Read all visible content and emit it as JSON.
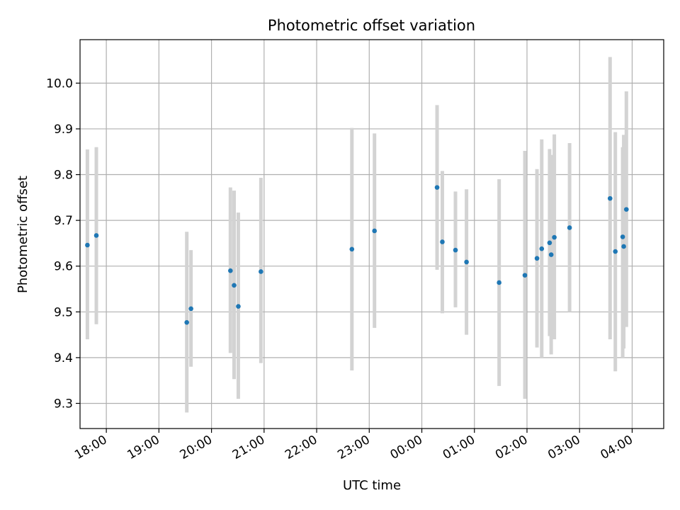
{
  "chart_data": {
    "type": "scatter",
    "title": "Photometric offset variation",
    "xlabel": "UTC time",
    "ylabel": "Photometric offset",
    "xlim": [
      17.5,
      28.6
    ],
    "ylim": [
      9.245,
      10.095
    ],
    "grid": true,
    "x_ticks": [
      {
        "value": 18,
        "label": "18:00"
      },
      {
        "value": 19,
        "label": "19:00"
      },
      {
        "value": 20,
        "label": "20:00"
      },
      {
        "value": 21,
        "label": "21:00"
      },
      {
        "value": 22,
        "label": "22:00"
      },
      {
        "value": 23,
        "label": "23:00"
      },
      {
        "value": 24,
        "label": "00:00"
      },
      {
        "value": 25,
        "label": "01:00"
      },
      {
        "value": 26,
        "label": "02:00"
      },
      {
        "value": 27,
        "label": "03:00"
      },
      {
        "value": 28,
        "label": "04:00"
      }
    ],
    "y_ticks": [
      {
        "value": 9.3,
        "label": "9.3"
      },
      {
        "value": 9.4,
        "label": "9.4"
      },
      {
        "value": 9.5,
        "label": "9.5"
      },
      {
        "value": 9.6,
        "label": "9.6"
      },
      {
        "value": 9.7,
        "label": "9.7"
      },
      {
        "value": 9.8,
        "label": "9.8"
      },
      {
        "value": 9.9,
        "label": "9.9"
      },
      {
        "value": 10.0,
        "label": "10.0"
      }
    ],
    "point_color": "#1f77b4",
    "errorbar_color": "#d3d3d3",
    "points": [
      {
        "x": 17.64,
        "y": 9.646,
        "lo": 9.44,
        "hi": 9.855
      },
      {
        "x": 17.81,
        "y": 9.667,
        "lo": 9.473,
        "hi": 9.86
      },
      {
        "x": 19.53,
        "y": 9.477,
        "lo": 9.28,
        "hi": 9.675
      },
      {
        "x": 19.61,
        "y": 9.507,
        "lo": 9.38,
        "hi": 9.635
      },
      {
        "x": 20.36,
        "y": 9.59,
        "lo": 9.41,
        "hi": 9.772
      },
      {
        "x": 20.43,
        "y": 9.558,
        "lo": 9.353,
        "hi": 9.765
      },
      {
        "x": 20.51,
        "y": 9.512,
        "lo": 9.31,
        "hi": 9.717
      },
      {
        "x": 20.94,
        "y": 9.588,
        "lo": 9.388,
        "hi": 9.793
      },
      {
        "x": 22.67,
        "y": 9.637,
        "lo": 9.372,
        "hi": 9.902
      },
      {
        "x": 23.1,
        "y": 9.677,
        "lo": 9.465,
        "hi": 9.89
      },
      {
        "x": 24.29,
        "y": 9.772,
        "lo": 9.592,
        "hi": 9.952
      },
      {
        "x": 24.39,
        "y": 9.653,
        "lo": 9.497,
        "hi": 9.808
      },
      {
        "x": 24.64,
        "y": 9.635,
        "lo": 9.51,
        "hi": 9.763
      },
      {
        "x": 24.85,
        "y": 9.609,
        "lo": 9.45,
        "hi": 9.768
      },
      {
        "x": 25.47,
        "y": 9.564,
        "lo": 9.338,
        "hi": 9.79
      },
      {
        "x": 25.96,
        "y": 9.58,
        "lo": 9.31,
        "hi": 9.852
      },
      {
        "x": 26.19,
        "y": 9.617,
        "lo": 9.422,
        "hi": 9.812
      },
      {
        "x": 26.28,
        "y": 9.638,
        "lo": 9.4,
        "hi": 9.877
      },
      {
        "x": 26.43,
        "y": 9.651,
        "lo": 9.447,
        "hi": 9.856
      },
      {
        "x": 26.46,
        "y": 9.625,
        "lo": 9.407,
        "hi": 9.843
      },
      {
        "x": 26.52,
        "y": 9.663,
        "lo": 9.44,
        "hi": 9.888
      },
      {
        "x": 26.81,
        "y": 9.684,
        "lo": 9.5,
        "hi": 9.869
      },
      {
        "x": 27.58,
        "y": 9.748,
        "lo": 9.44,
        "hi": 10.057
      },
      {
        "x": 27.68,
        "y": 9.632,
        "lo": 9.37,
        "hi": 9.893
      },
      {
        "x": 27.82,
        "y": 9.664,
        "lo": 9.4,
        "hi": 9.86
      },
      {
        "x": 27.84,
        "y": 9.643,
        "lo": 9.42,
        "hi": 9.887
      },
      {
        "x": 27.89,
        "y": 9.724,
        "lo": 9.467,
        "hi": 9.982
      }
    ]
  }
}
